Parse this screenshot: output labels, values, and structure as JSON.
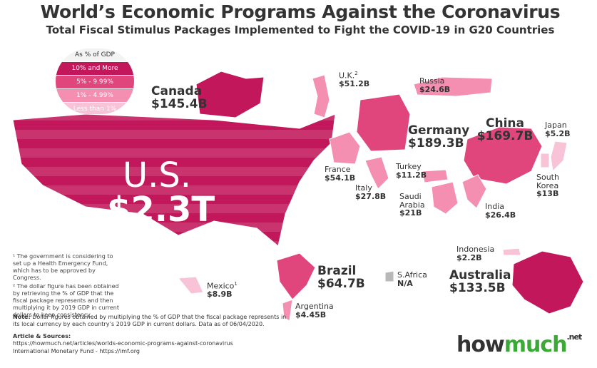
{
  "header": {
    "title": "World’s Economic Programs Against the Coronavirus",
    "subtitle": "Total Fiscal Stimulus Packages Implemented to Fight the COVID-19 in G20 Countries"
  },
  "legend": {
    "title": "As % of GDP",
    "items": [
      {
        "label": "10% and More",
        "color": "#c2185b"
      },
      {
        "label": "5% - 9.99%",
        "color": "#e0457b"
      },
      {
        "label": "1% - 4.99%",
        "color": "#f48fb1"
      },
      {
        "label": "Less than 1%",
        "color": "#f8c3d6"
      }
    ]
  },
  "countries": [
    {
      "name": "U.S.",
      "amount": "$2.3T",
      "color": "#c2185b"
    },
    {
      "name": "Canada",
      "amount": "$145.4B",
      "color": "#c2185b"
    },
    {
      "name": "U.K.",
      "mark": "2",
      "amount": "$51.2B",
      "color": "#f48fb1"
    },
    {
      "name": "Russia",
      "amount": "$24.6B",
      "color": "#f48fb1"
    },
    {
      "name": "Germany",
      "amount": "$189.3B",
      "color": "#e0457b"
    },
    {
      "name": "China",
      "amount": "$169.7B",
      "color": "#e0457b"
    },
    {
      "name": "Japan",
      "amount": "$5.2B",
      "color": "#f8c3d6"
    },
    {
      "name": "France",
      "amount": "$54.1B",
      "color": "#f48fb1"
    },
    {
      "name": "Turkey",
      "amount": "$11.2B",
      "color": "#f48fb1"
    },
    {
      "name": "Italy",
      "amount": "$27.8B",
      "color": "#f48fb1"
    },
    {
      "name": "South Korea",
      "amount": "$13B",
      "color": "#f8c3d6"
    },
    {
      "name": "Saudi Arabia",
      "amount": "$21B",
      "color": "#f48fb1"
    },
    {
      "name": "India",
      "amount": "$26.4B",
      "color": "#f48fb1"
    },
    {
      "name": "Mexico",
      "mark": "1",
      "amount": "$8.9B",
      "color": "#f8c3d6"
    },
    {
      "name": "Brazil",
      "amount": "$64.7B",
      "color": "#e0457b"
    },
    {
      "name": "S.Africa",
      "amount": "N/A",
      "color": "#b8b8b8"
    },
    {
      "name": "Indonesia",
      "amount": "$2.2B",
      "color": "#f8c3d6"
    },
    {
      "name": "Australia",
      "amount": "$133.5B",
      "color": "#c2185b"
    },
    {
      "name": "Argentina",
      "amount": "$4.45B",
      "color": "#f48fb1"
    }
  ],
  "footnotes": [
    "¹ The government is considering to set up a Health Emergency Fund, which has to be approved by Congress.",
    "² The dollar figure has been obtained by retrieving the % of GDP that the fiscal package represents and then multiplying it by 2019 GDP in current dollars to keep consistency."
  ],
  "note": {
    "label": "Note:",
    "text": "Dollar figures obtained by multiplying the % of GDP that the fiscal package represents in its local currency by each country’s 2019 GDP in current dollars. Data as of 06/04/2020."
  },
  "sources": {
    "title": "Article & Sources:",
    "lines": [
      "https://howmuch.net/articles/worlds-economic-programs-against-coronavirus",
      "International Monetary Fund - https://imf.org"
    ]
  },
  "logo": {
    "how": "how",
    "much": "much",
    "net": ".net"
  }
}
